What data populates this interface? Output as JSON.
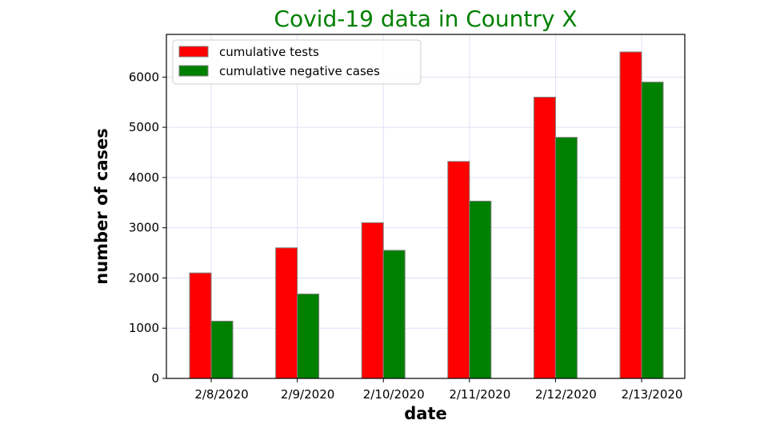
{
  "chart_data": {
    "type": "bar",
    "title": "Covid-19 data in Country X",
    "xlabel": "date",
    "ylabel": "number of cases",
    "categories": [
      "2/8/2020",
      "2/9/2020",
      "2/10/2020",
      "2/11/2020",
      "2/12/2020",
      "2/13/2020"
    ],
    "series": [
      {
        "name": "cumulative tests",
        "color": "#ff0000",
        "values": [
          2100,
          2600,
          3100,
          4320,
          5600,
          6500
        ]
      },
      {
        "name": "cumulative negative cases",
        "color": "#008000",
        "values": [
          1140,
          1680,
          2550,
          3530,
          4800,
          5900
        ]
      }
    ],
    "ylim": [
      0,
      6850
    ],
    "yticks": [
      0,
      1000,
      2000,
      3000,
      4000,
      5000,
      6000
    ],
    "grid": true,
    "legend_position": "upper-left",
    "title_color": "#008000",
    "grid_color": "#e0e0f8",
    "bar_edge_color": "#808080"
  }
}
